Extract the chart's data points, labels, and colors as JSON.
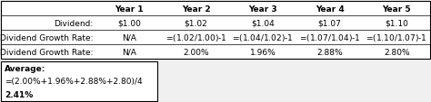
{
  "header_row": [
    "",
    "Year 1",
    "Year 2",
    "Year 3",
    "Year 4",
    "Year 5"
  ],
  "row1_label": "Dividend:",
  "row1_values": [
    "$1.00",
    "$1.02",
    "$1.04",
    "$1.07",
    "$1.10"
  ],
  "row2_label": "Dividend Growth Rate:",
  "row2_formula": [
    "N/A",
    "=($1.02/$1.00)-1",
    "=($1.04/$1.02)-1",
    "=($1.07/$1.04)-1",
    "=($1.10/$1.07)-1"
  ],
  "row3_label": "Dividend Growth Rate:",
  "row3_values": [
    "N/A",
    "2.00%",
    "1.96%",
    "2.88%",
    "2.80%"
  ],
  "avg_label": "Average:",
  "avg_formula": "=(2.00%+1.96%+2.88%+2.80)/4",
  "avg_value": "2.41%",
  "bg_color": "#f0f0f0",
  "table_bg": "#ffffff",
  "box_bg": "#ffffff",
  "border_color": "#000000",
  "text_color": "#000000",
  "font_size": 6.5,
  "fig_width": 4.74,
  "fig_height": 1.14
}
